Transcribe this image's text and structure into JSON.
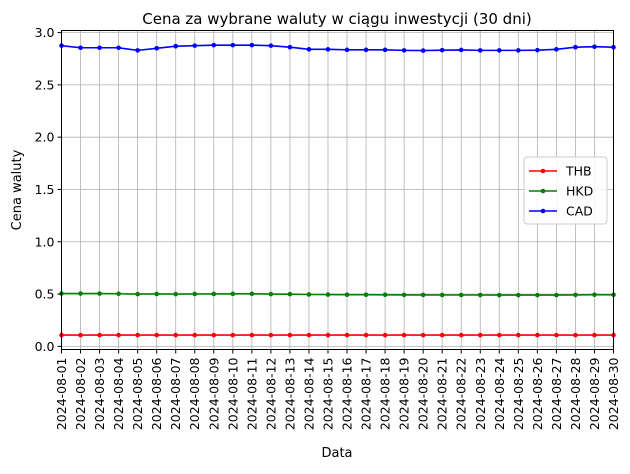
{
  "chart_data": {
    "type": "line",
    "title": "Cena za wybrane waluty w ciągu inwestycji (30 dni)",
    "xlabel": "Data",
    "ylabel": "Cena waluty",
    "ylim": [
      -0.03,
      3.02
    ],
    "yticks": [
      0.0,
      0.5,
      1.0,
      1.5,
      2.0,
      2.5,
      3.0
    ],
    "ytick_labels": [
      "0.0",
      "0.5",
      "1.0",
      "1.5",
      "2.0",
      "2.5",
      "3.0"
    ],
    "grid": true,
    "legend_position": "center-right",
    "x": [
      "2024-08-01",
      "2024-08-02",
      "2024-08-03",
      "2024-08-04",
      "2024-08-05",
      "2024-08-06",
      "2024-08-07",
      "2024-08-08",
      "2024-08-09",
      "2024-08-10",
      "2024-08-11",
      "2024-08-12",
      "2024-08-13",
      "2024-08-14",
      "2024-08-15",
      "2024-08-16",
      "2024-08-17",
      "2024-08-18",
      "2024-08-19",
      "2024-08-20",
      "2024-08-21",
      "2024-08-22",
      "2024-08-23",
      "2024-08-24",
      "2024-08-25",
      "2024-08-26",
      "2024-08-27",
      "2024-08-28",
      "2024-08-29",
      "2024-08-30"
    ],
    "series": [
      {
        "name": "THB",
        "color": "#ff0000",
        "values": [
          0.108,
          0.108,
          0.108,
          0.108,
          0.108,
          0.108,
          0.108,
          0.108,
          0.108,
          0.108,
          0.108,
          0.108,
          0.108,
          0.108,
          0.108,
          0.108,
          0.108,
          0.108,
          0.108,
          0.108,
          0.108,
          0.108,
          0.108,
          0.108,
          0.108,
          0.108,
          0.108,
          0.108,
          0.108,
          0.108
        ]
      },
      {
        "name": "HKD",
        "color": "#008000",
        "values": [
          0.505,
          0.505,
          0.505,
          0.503,
          0.5,
          0.501,
          0.5,
          0.501,
          0.501,
          0.502,
          0.503,
          0.5,
          0.499,
          0.496,
          0.495,
          0.494,
          0.494,
          0.493,
          0.492,
          0.492,
          0.491,
          0.491,
          0.491,
          0.49,
          0.49,
          0.49,
          0.49,
          0.492,
          0.494,
          0.493
        ]
      },
      {
        "name": "CAD",
        "color": "#0000ff",
        "values": [
          2.875,
          2.855,
          2.855,
          2.855,
          2.83,
          2.85,
          2.87,
          2.875,
          2.88,
          2.88,
          2.88,
          2.875,
          2.86,
          2.84,
          2.84,
          2.835,
          2.835,
          2.835,
          2.83,
          2.828,
          2.832,
          2.834,
          2.83,
          2.83,
          2.83,
          2.832,
          2.84,
          2.86,
          2.865,
          2.86
        ]
      }
    ]
  }
}
